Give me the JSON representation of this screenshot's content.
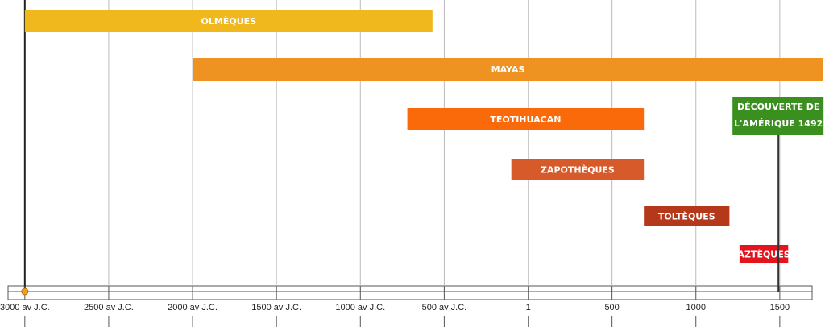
{
  "chart_data": {
    "type": "timeline",
    "series": [
      {
        "name": "OLMÈQUES",
        "start": -3000,
        "end": -570,
        "color": "#f0b81c"
      },
      {
        "name": "MAYAS",
        "start": -2000,
        "end": 1760,
        "color": "#ee9322"
      },
      {
        "name": "TEOTIHUACAN",
        "start": -720,
        "end": 690,
        "color": "#fa6a0a"
      },
      {
        "name": "ZAPOTHÈQUES",
        "start": -100,
        "end": 690,
        "color": "#d65a2a"
      },
      {
        "name": "TOLTÈQUES",
        "start": 690,
        "end": 1200,
        "color": "#b5381a"
      },
      {
        "name": "AZTÈQUES",
        "start": 1260,
        "end": 1550,
        "color": "#e3141e"
      }
    ],
    "milestone": {
      "label": [
        "DÉCOUVERTE DE",
        "L'AMÉRIQUE 1492"
      ],
      "x": 1492,
      "color": "#3a8f1f"
    },
    "xlim": [
      -3100,
      1760
    ],
    "xticks": [
      {
        "value": -3000,
        "label": "3000 av J.C."
      },
      {
        "value": -2500,
        "label": "2500 av J.C."
      },
      {
        "value": -2000,
        "label": "2000 av J.C."
      },
      {
        "value": -1500,
        "label": "1500 av J.C."
      },
      {
        "value": -1000,
        "label": "1000 av J.C."
      },
      {
        "value": -500,
        "label": "500 av J.C."
      },
      1,
      500,
      1000,
      1500
    ],
    "grid": true
  }
}
